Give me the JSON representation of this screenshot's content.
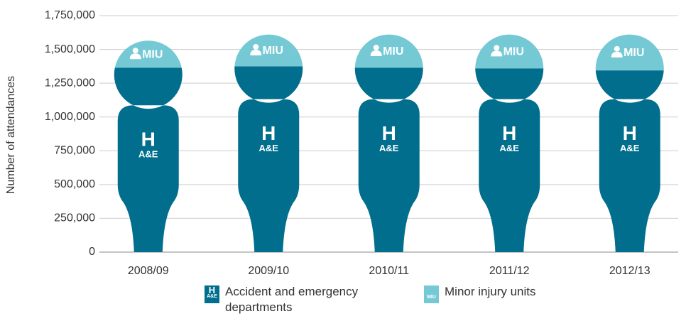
{
  "chart_data": {
    "type": "pictogram-stacked",
    "y_label": "Number of attendances",
    "categories": [
      "2008/09",
      "2009/10",
      "2010/11",
      "2011/12",
      "2012/13"
    ],
    "series": [
      {
        "name": "Accident and emergency departments",
        "color": "#006e8c",
        "icon_text": [
          "H",
          "A&E"
        ],
        "values": [
          1365000,
          1375000,
          1365000,
          1360000,
          1345000
        ]
      },
      {
        "name": "Minor injury units",
        "color": "#74c9d4",
        "icon_text": [
          "MIU"
        ],
        "values": [
          200000,
          235000,
          245000,
          250000,
          265000
        ]
      }
    ],
    "ylim": [
      0,
      1750000
    ],
    "yticks": [
      0,
      {
        "value": 250000,
        "label": "250,000"
      },
      {
        "value": 500000,
        "label": "500,000"
      },
      {
        "value": 750000,
        "label": "750,000"
      },
      {
        "value": 1000000,
        "label": "1,000,000"
      },
      {
        "value": 1250000,
        "label": "1,250,000"
      },
      {
        "value": 1500000,
        "label": "1,500,000"
      },
      {
        "value": 1750000,
        "label": "1,750,000"
      }
    ],
    "grid": true
  }
}
